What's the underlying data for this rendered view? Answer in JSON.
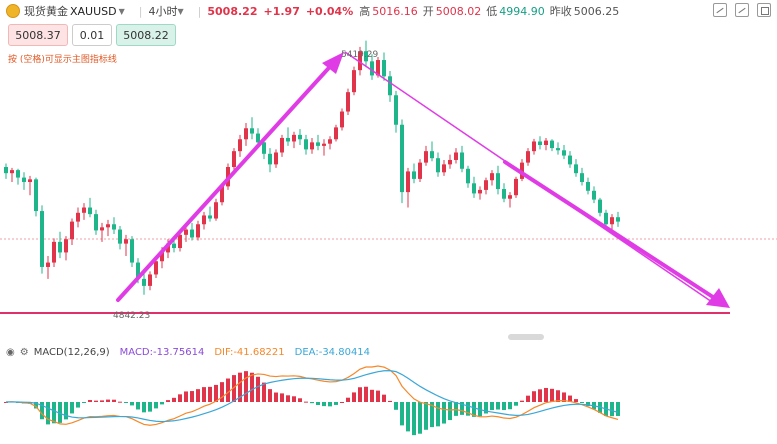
{
  "header": {
    "instrument_name": "现货黄金",
    "symbol": "XAUUSD",
    "timeframe": "4小时",
    "last_price": "5008.22",
    "change": "+1.97",
    "change_pct": "+0.04%",
    "high_label": "高",
    "high_value": "5016.16",
    "open_label": "开",
    "open_value": "5008.02",
    "low_label": "低",
    "low_value": "4994.90",
    "prev_close_label": "昨收",
    "prev_close_value": "5006.25"
  },
  "order_panel": {
    "sell_price": "5008.37",
    "quantity": "0.01",
    "buy_price": "5008.22"
  },
  "hint_text": "按 (空格)可显示主图指标线",
  "chart_annotations": {
    "peak_label": "5419.29",
    "trough_label": "4842.23"
  },
  "macd": {
    "name": "MACD(12,26,9)",
    "macd_label": "MACD:-13.75614",
    "dif_label": "DIF:-41.68221",
    "dea_label": "DEA:-34.80414"
  },
  "colors": {
    "up": "#e0344b",
    "down": "#1fb58a",
    "trendline": "#e03ce6",
    "support_line": "#e0306a"
  },
  "icons": [
    "gold-coin-icon",
    "chevron-down-icon",
    "eye-icon",
    "settings-icon",
    "drawing-tool-icon",
    "layout-icon"
  ],
  "chart_data": {
    "type": "candlestick",
    "y_range": [
      4780,
      5450
    ],
    "peak": 5419.29,
    "trough": 4842.23,
    "candles": [
      [
        5132,
        5140,
        5105,
        5118
      ],
      [
        5118,
        5130,
        5098,
        5125
      ],
      [
        5125,
        5128,
        5092,
        5108
      ],
      [
        5108,
        5120,
        5080,
        5098
      ],
      [
        5098,
        5112,
        5068,
        5104
      ],
      [
        5104,
        5108,
        5020,
        5032
      ],
      [
        5032,
        5045,
        4890,
        4905
      ],
      [
        4905,
        4930,
        4878,
        4915
      ],
      [
        4915,
        4970,
        4905,
        4962
      ],
      [
        4962,
        4985,
        4925,
        4938
      ],
      [
        4938,
        4975,
        4920,
        4968
      ],
      [
        4968,
        5015,
        4955,
        5008
      ],
      [
        5008,
        5040,
        4995,
        5028
      ],
      [
        5028,
        5050,
        5012,
        5040
      ],
      [
        5040,
        5062,
        5018,
        5025
      ],
      [
        5025,
        5035,
        4978,
        4988
      ],
      [
        4988,
        5005,
        4962,
        4995
      ],
      [
        4995,
        5012,
        4975,
        5002
      ],
      [
        5002,
        5018,
        4980,
        4990
      ],
      [
        4990,
        4998,
        4945,
        4958
      ],
      [
        4958,
        4978,
        4930,
        4968
      ],
      [
        4968,
        4975,
        4905,
        4915
      ],
      [
        4915,
        4925,
        4868,
        4878
      ],
      [
        4878,
        4895,
        4842,
        4862
      ],
      [
        4862,
        4895,
        4852,
        4888
      ],
      [
        4888,
        4925,
        4880,
        4918
      ],
      [
        4918,
        4950,
        4902,
        4938
      ],
      [
        4938,
        4968,
        4925,
        4958
      ],
      [
        4958,
        4975,
        4938,
        4948
      ],
      [
        4948,
        4985,
        4940,
        4978
      ],
      [
        4978,
        5000,
        4962,
        4990
      ],
      [
        4990,
        5005,
        4965,
        4972
      ],
      [
        4972,
        5010,
        4965,
        5002
      ],
      [
        5002,
        5030,
        4990,
        5022
      ],
      [
        5022,
        5042,
        5008,
        5015
      ],
      [
        5015,
        5060,
        5010,
        5052
      ],
      [
        5052,
        5095,
        5045,
        5088
      ],
      [
        5088,
        5140,
        5080,
        5132
      ],
      [
        5132,
        5175,
        5120,
        5168
      ],
      [
        5168,
        5205,
        5155,
        5195
      ],
      [
        5195,
        5232,
        5180,
        5220
      ],
      [
        5220,
        5245,
        5195,
        5208
      ],
      [
        5208,
        5220,
        5178,
        5188
      ],
      [
        5188,
        5200,
        5150,
        5162
      ],
      [
        5162,
        5175,
        5120,
        5138
      ],
      [
        5138,
        5172,
        5130,
        5165
      ],
      [
        5165,
        5205,
        5155,
        5198
      ],
      [
        5198,
        5222,
        5180,
        5190
      ],
      [
        5190,
        5212,
        5175,
        5205
      ],
      [
        5205,
        5218,
        5182,
        5195
      ],
      [
        5195,
        5205,
        5160,
        5172
      ],
      [
        5172,
        5198,
        5162,
        5188
      ],
      [
        5188,
        5205,
        5170,
        5180
      ],
      [
        5180,
        5195,
        5158,
        5185
      ],
      [
        5185,
        5202,
        5172,
        5195
      ],
      [
        5195,
        5228,
        5190,
        5222
      ],
      [
        5222,
        5265,
        5215,
        5258
      ],
      [
        5258,
        5310,
        5250,
        5302
      ],
      [
        5302,
        5360,
        5295,
        5352
      ],
      [
        5352,
        5405,
        5340,
        5395
      ],
      [
        5395,
        5419,
        5360,
        5372
      ],
      [
        5372,
        5388,
        5330,
        5340
      ],
      [
        5340,
        5382,
        5335,
        5375
      ],
      [
        5375,
        5392,
        5328,
        5338
      ],
      [
        5338,
        5350,
        5280,
        5295
      ],
      [
        5295,
        5305,
        5210,
        5228
      ],
      [
        5228,
        5240,
        5050,
        5075
      ],
      [
        5075,
        5130,
        5040,
        5122
      ],
      [
        5122,
        5140,
        5095,
        5105
      ],
      [
        5105,
        5150,
        5098,
        5142
      ],
      [
        5142,
        5180,
        5135,
        5168
      ],
      [
        5168,
        5190,
        5145,
        5152
      ],
      [
        5152,
        5165,
        5110,
        5120
      ],
      [
        5120,
        5148,
        5112,
        5138
      ],
      [
        5138,
        5160,
        5128,
        5148
      ],
      [
        5148,
        5175,
        5140,
        5165
      ],
      [
        5165,
        5180,
        5120,
        5128
      ],
      [
        5128,
        5135,
        5085,
        5095
      ],
      [
        5095,
        5110,
        5062,
        5072
      ],
      [
        5072,
        5088,
        5058,
        5080
      ],
      [
        5080,
        5108,
        5070,
        5102
      ],
      [
        5102,
        5125,
        5090,
        5118
      ],
      [
        5118,
        5135,
        5070,
        5082
      ],
      [
        5082,
        5095,
        5052,
        5060
      ],
      [
        5060,
        5075,
        5040,
        5068
      ],
      [
        5068,
        5110,
        5062,
        5105
      ],
      [
        5105,
        5150,
        5100,
        5142
      ],
      [
        5142,
        5175,
        5135,
        5168
      ],
      [
        5168,
        5196,
        5160,
        5190
      ],
      [
        5190,
        5202,
        5172,
        5182
      ],
      [
        5182,
        5198,
        5170,
        5192
      ],
      [
        5192,
        5195,
        5168,
        5175
      ],
      [
        5175,
        5188,
        5160,
        5170
      ],
      [
        5170,
        5182,
        5150,
        5158
      ],
      [
        5158,
        5168,
        5130,
        5138
      ],
      [
        5138,
        5150,
        5110,
        5118
      ],
      [
        5118,
        5130,
        5090,
        5098
      ],
      [
        5098,
        5108,
        5070,
        5078
      ],
      [
        5078,
        5088,
        5050,
        5058
      ],
      [
        5058,
        5062,
        5020,
        5028
      ],
      [
        5028,
        5035,
        4995,
        5002
      ],
      [
        5002,
        5025,
        4990,
        5018
      ],
      [
        5018,
        5030,
        4996,
        5008
      ]
    ]
  }
}
